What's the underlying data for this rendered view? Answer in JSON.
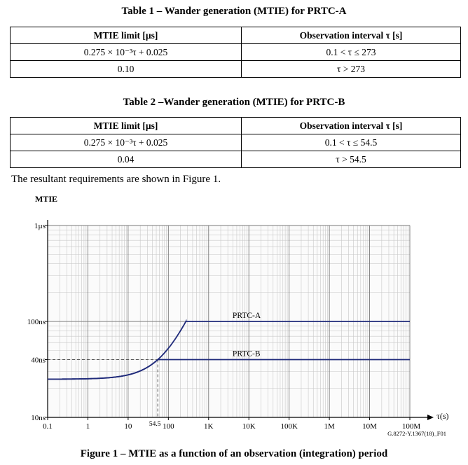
{
  "table1": {
    "caption": "Table 1 – Wander generation (MTIE) for PRTC-A",
    "headers": [
      "MTIE limit [µs]",
      "Observation interval τ [s]"
    ],
    "rows": [
      [
        "0.275 × 10⁻³τ + 0.025",
        "0.1 < τ ≤ 273"
      ],
      [
        "0.10",
        "τ > 273"
      ]
    ]
  },
  "table2": {
    "caption": "Table 2 –Wander generation (MTIE) for PRTC-B",
    "headers": [
      "MTIE limit [µs]",
      "Observation interval τ [s]"
    ],
    "rows": [
      [
        "0.275 × 10⁻³τ + 0.025",
        "0.1 < τ ≤ 54.5"
      ],
      [
        "0.04",
        "τ > 54.5"
      ]
    ]
  },
  "paragraph": "The resultant requirements are shown in Figure 1.",
  "figure": {
    "title": "Figure 1 – MTIE as a function of an observation (integration) period",
    "code": "G.8272-Y.1367(18)_F01",
    "marker_label": "54.5"
  },
  "chart_data": {
    "type": "line",
    "xlabel": "τ(s)",
    "ylabel": "MTIE",
    "x_scale": "log",
    "y_scale": "log",
    "xlim": [
      0.1,
      100000000
    ],
    "ylim": [
      0.01,
      1
    ],
    "x_ticks": [
      {
        "value": 0.1,
        "label": "0.1"
      },
      {
        "value": 1,
        "label": "1"
      },
      {
        "value": 10,
        "label": "10"
      },
      {
        "value": 100,
        "label": "100"
      },
      {
        "value": 1000,
        "label": "1K"
      },
      {
        "value": 10000,
        "label": "10K"
      },
      {
        "value": 100000,
        "label": "100K"
      },
      {
        "value": 1000000,
        "label": "1M"
      },
      {
        "value": 10000000,
        "label": "10M"
      },
      {
        "value": 100000000,
        "label": "100M"
      }
    ],
    "y_ticks": [
      {
        "value": 1,
        "label": "1µs"
      },
      {
        "value": 0.1,
        "label": "100ns"
      },
      {
        "value": 0.04,
        "label": "40ns"
      },
      {
        "value": 0.01,
        "label": "10ns"
      }
    ],
    "grid": true,
    "series": [
      {
        "name": "PRTC-A",
        "formula": "0.275e-3*tau + 0.025 for tau <= 273; 0.10 for tau > 273",
        "color": "#1f2a7a"
      },
      {
        "name": "PRTC-B",
        "formula": "0.275e-3*tau + 0.025 for tau <= 54.5; 0.04 for tau > 54.5",
        "color": "#1f2a7a"
      }
    ],
    "reference_lines": [
      {
        "axis": "y",
        "value": 0.04,
        "style": "dashed"
      },
      {
        "axis": "x",
        "value": 54.5,
        "style": "dashed"
      }
    ]
  }
}
